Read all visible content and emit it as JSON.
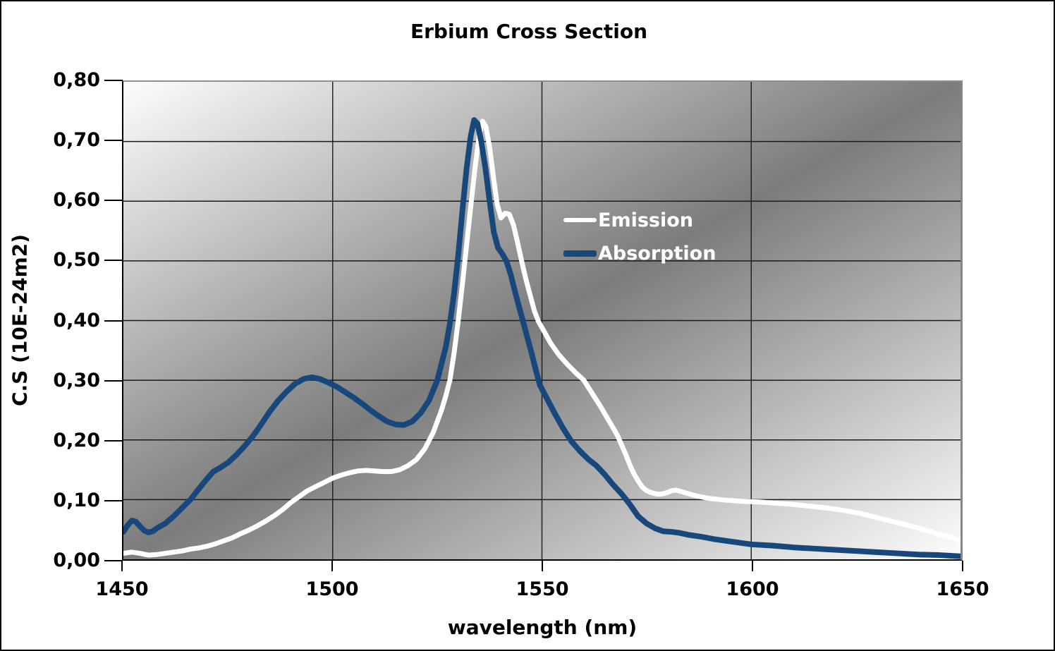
{
  "chart_data": {
    "type": "line",
    "title": "Erbium Cross Section",
    "xlabel": "wavelength (nm)",
    "ylabel": "C.S (10E-24m2)",
    "xlim": [
      1450,
      1650
    ],
    "ylim": [
      0.0,
      0.8
    ],
    "x_ticks": [
      1450,
      1500,
      1550,
      1600,
      1650
    ],
    "x_tick_labels": [
      "1450",
      "1500",
      "1550",
      "1600",
      "1650"
    ],
    "y_ticks": [
      0.0,
      0.1,
      0.2,
      0.3,
      0.4,
      0.5,
      0.6,
      0.7,
      0.8
    ],
    "y_tick_labels": [
      "0,00",
      "0,10",
      "0,20",
      "0,30",
      "0,40",
      "0,50",
      "0,60",
      "0,70",
      "0,80"
    ],
    "grid": true,
    "gridline_color": "#1a1a1a",
    "plot_background": {
      "type": "diagonal-gradient",
      "stops": [
        "#fdfdfd",
        "#7c7c7c",
        "#fdfdfd"
      ]
    },
    "legend": {
      "position": "inside-right",
      "entries": [
        {
          "label": "Emission",
          "color": "#ffffff"
        },
        {
          "label": "Absorption",
          "color": "#17477b"
        }
      ]
    },
    "series": [
      {
        "name": "Emission",
        "color": "#ffffff",
        "width": 7,
        "points": [
          [
            1450,
            0.01
          ],
          [
            1452,
            0.012
          ],
          [
            1454,
            0.01
          ],
          [
            1456,
            0.007
          ],
          [
            1458,
            0.008
          ],
          [
            1460,
            0.01
          ],
          [
            1462,
            0.012
          ],
          [
            1464,
            0.014
          ],
          [
            1466,
            0.017
          ],
          [
            1468,
            0.019
          ],
          [
            1470,
            0.022
          ],
          [
            1472,
            0.026
          ],
          [
            1474,
            0.031
          ],
          [
            1476,
            0.036
          ],
          [
            1478,
            0.043
          ],
          [
            1480,
            0.049
          ],
          [
            1482,
            0.056
          ],
          [
            1484,
            0.064
          ],
          [
            1486,
            0.073
          ],
          [
            1488,
            0.083
          ],
          [
            1490,
            0.095
          ],
          [
            1492,
            0.105
          ],
          [
            1494,
            0.115
          ],
          [
            1496,
            0.122
          ],
          [
            1498,
            0.129
          ],
          [
            1500,
            0.136
          ],
          [
            1502,
            0.141
          ],
          [
            1504,
            0.145
          ],
          [
            1506,
            0.148
          ],
          [
            1508,
            0.149
          ],
          [
            1510,
            0.148
          ],
          [
            1512,
            0.147
          ],
          [
            1514,
            0.147
          ],
          [
            1516,
            0.15
          ],
          [
            1518,
            0.157
          ],
          [
            1520,
            0.167
          ],
          [
            1522,
            0.185
          ],
          [
            1524,
            0.212
          ],
          [
            1526,
            0.25
          ],
          [
            1527,
            0.273
          ],
          [
            1528,
            0.3
          ],
          [
            1529,
            0.345
          ],
          [
            1530,
            0.4
          ],
          [
            1531,
            0.462
          ],
          [
            1532,
            0.527
          ],
          [
            1533,
            0.592
          ],
          [
            1534,
            0.655
          ],
          [
            1535,
            0.71
          ],
          [
            1535.8,
            0.734
          ],
          [
            1536.6,
            0.725
          ],
          [
            1537.5,
            0.69
          ],
          [
            1538.4,
            0.64
          ],
          [
            1539.3,
            0.595
          ],
          [
            1540.2,
            0.572
          ],
          [
            1541.2,
            0.58
          ],
          [
            1542.2,
            0.578
          ],
          [
            1543.2,
            0.56
          ],
          [
            1544.2,
            0.53
          ],
          [
            1545.2,
            0.498
          ],
          [
            1546.2,
            0.468
          ],
          [
            1547.2,
            0.442
          ],
          [
            1548.2,
            0.416
          ],
          [
            1549.2,
            0.398
          ],
          [
            1550.5,
            0.382
          ],
          [
            1552,
            0.363
          ],
          [
            1554,
            0.343
          ],
          [
            1556,
            0.327
          ],
          [
            1558,
            0.313
          ],
          [
            1560,
            0.3
          ],
          [
            1562,
            0.278
          ],
          [
            1564,
            0.256
          ],
          [
            1566,
            0.232
          ],
          [
            1568,
            0.208
          ],
          [
            1570,
            0.176
          ],
          [
            1571,
            0.158
          ],
          [
            1572,
            0.143
          ],
          [
            1573,
            0.131
          ],
          [
            1574,
            0.121
          ],
          [
            1575,
            0.115
          ],
          [
            1576,
            0.112
          ],
          [
            1577,
            0.11
          ],
          [
            1578,
            0.109
          ],
          [
            1579,
            0.11
          ],
          [
            1580,
            0.112
          ],
          [
            1581,
            0.115
          ],
          [
            1582,
            0.116
          ],
          [
            1583,
            0.114
          ],
          [
            1585,
            0.11
          ],
          [
            1587,
            0.106
          ],
          [
            1590,
            0.102
          ],
          [
            1594,
            0.099
          ],
          [
            1598,
            0.097
          ],
          [
            1602,
            0.096
          ],
          [
            1606,
            0.094
          ],
          [
            1610,
            0.092
          ],
          [
            1614,
            0.089
          ],
          [
            1618,
            0.086
          ],
          [
            1622,
            0.082
          ],
          [
            1626,
            0.077
          ],
          [
            1630,
            0.07
          ],
          [
            1634,
            0.063
          ],
          [
            1638,
            0.056
          ],
          [
            1642,
            0.048
          ],
          [
            1646,
            0.04
          ],
          [
            1650,
            0.031
          ]
        ]
      },
      {
        "name": "Absorption",
        "color": "#17477b",
        "width": 8,
        "points": [
          [
            1450,
            0.046
          ],
          [
            1451,
            0.057
          ],
          [
            1452,
            0.065
          ],
          [
            1453,
            0.063
          ],
          [
            1454,
            0.055
          ],
          [
            1455,
            0.048
          ],
          [
            1456,
            0.045
          ],
          [
            1457,
            0.047
          ],
          [
            1458,
            0.052
          ],
          [
            1460,
            0.06
          ],
          [
            1462,
            0.072
          ],
          [
            1464,
            0.086
          ],
          [
            1466,
            0.1
          ],
          [
            1468,
            0.118
          ],
          [
            1470,
            0.135
          ],
          [
            1471.5,
            0.147
          ],
          [
            1473,
            0.153
          ],
          [
            1475,
            0.162
          ],
          [
            1477,
            0.175
          ],
          [
            1479,
            0.19
          ],
          [
            1481,
            0.207
          ],
          [
            1483,
            0.227
          ],
          [
            1485,
            0.248
          ],
          [
            1487,
            0.266
          ],
          [
            1489,
            0.281
          ],
          [
            1491,
            0.294
          ],
          [
            1493,
            0.302
          ],
          [
            1495,
            0.305
          ],
          [
            1497,
            0.302
          ],
          [
            1499,
            0.296
          ],
          [
            1501,
            0.289
          ],
          [
            1503,
            0.28
          ],
          [
            1505,
            0.271
          ],
          [
            1507,
            0.261
          ],
          [
            1509,
            0.25
          ],
          [
            1511,
            0.24
          ],
          [
            1513,
            0.231
          ],
          [
            1515,
            0.226
          ],
          [
            1517,
            0.225
          ],
          [
            1519,
            0.231
          ],
          [
            1521,
            0.245
          ],
          [
            1523,
            0.266
          ],
          [
            1525,
            0.3
          ],
          [
            1527,
            0.355
          ],
          [
            1528,
            0.395
          ],
          [
            1529,
            0.445
          ],
          [
            1530,
            0.51
          ],
          [
            1531,
            0.585
          ],
          [
            1532,
            0.655
          ],
          [
            1533,
            0.71
          ],
          [
            1533.8,
            0.736
          ],
          [
            1534.6,
            0.73
          ],
          [
            1535.5,
            0.7
          ],
          [
            1536.5,
            0.655
          ],
          [
            1537.5,
            0.6
          ],
          [
            1538.5,
            0.548
          ],
          [
            1539.5,
            0.522
          ],
          [
            1540.5,
            0.512
          ],
          [
            1541.5,
            0.5
          ],
          [
            1542.5,
            0.478
          ],
          [
            1543.5,
            0.45
          ],
          [
            1544.5,
            0.424
          ],
          [
            1545.5,
            0.398
          ],
          [
            1546.5,
            0.372
          ],
          [
            1547.5,
            0.346
          ],
          [
            1548.5,
            0.318
          ],
          [
            1549.5,
            0.292
          ],
          [
            1551,
            0.272
          ],
          [
            1553,
            0.245
          ],
          [
            1555,
            0.22
          ],
          [
            1557,
            0.198
          ],
          [
            1559,
            0.182
          ],
          [
            1561,
            0.168
          ],
          [
            1563,
            0.157
          ],
          [
            1565,
            0.142
          ],
          [
            1567,
            0.125
          ],
          [
            1569,
            0.11
          ],
          [
            1571,
            0.092
          ],
          [
            1573,
            0.072
          ],
          [
            1575,
            0.06
          ],
          [
            1577,
            0.052
          ],
          [
            1579,
            0.047
          ],
          [
            1581,
            0.046
          ],
          [
            1583,
            0.044
          ],
          [
            1585,
            0.041
          ],
          [
            1588,
            0.038
          ],
          [
            1591,
            0.034
          ],
          [
            1594,
            0.031
          ],
          [
            1597,
            0.028
          ],
          [
            1600,
            0.025
          ],
          [
            1605,
            0.023
          ],
          [
            1610,
            0.02
          ],
          [
            1615,
            0.018
          ],
          [
            1620,
            0.016
          ],
          [
            1625,
            0.014
          ],
          [
            1630,
            0.012
          ],
          [
            1635,
            0.01
          ],
          [
            1640,
            0.008
          ],
          [
            1645,
            0.007
          ],
          [
            1650,
            0.005
          ]
        ]
      }
    ]
  }
}
